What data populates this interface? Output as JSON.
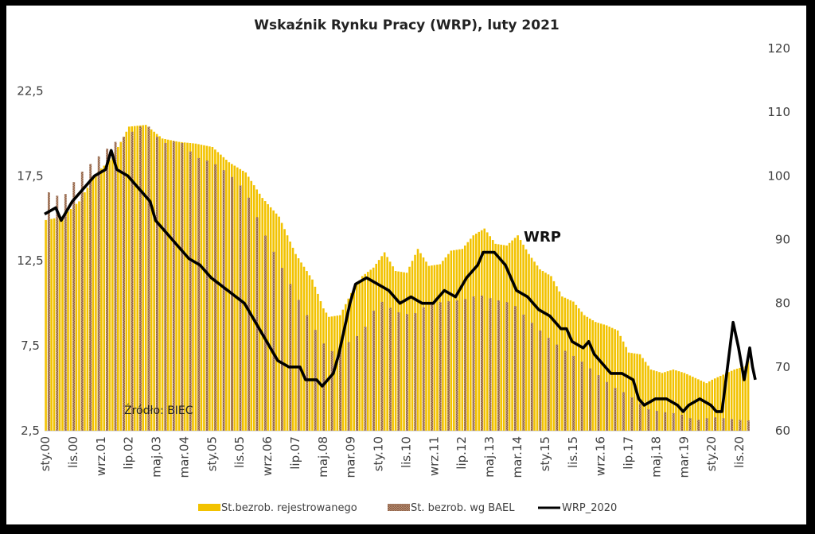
{
  "chart_data": {
    "type": "bar+line",
    "title": "Wskaźnik Rynku Pracy (WRP), luty 2021",
    "left_axis": {
      "ylim": [
        2.5,
        25
      ],
      "ticks": [
        "2,5",
        "7,5",
        "12,5",
        "17,5",
        "22,5"
      ],
      "tick_values": [
        2.5,
        7.5,
        12.5,
        17.5,
        22.5
      ]
    },
    "right_axis": {
      "ylim": [
        60,
        120
      ],
      "ticks": [
        "60",
        "70",
        "80",
        "90",
        "100",
        "110",
        "120"
      ],
      "tick_values": [
        60,
        70,
        80,
        90,
        100,
        110,
        120
      ]
    },
    "x_tick_labels": [
      "sty.00",
      "lis.00",
      "wrz.01",
      "lip.02",
      "maj.03",
      "mar.04",
      "sty.05",
      "lis.05",
      "wrz.06",
      "lip.07",
      "maj.08",
      "mar.09",
      "sty.10",
      "lis.10",
      "wrz.11",
      "lip.12",
      "maj.13",
      "mar.14",
      "sty.15",
      "lis.15",
      "wrz.16",
      "lip.17",
      "maj.18",
      "mar.19",
      "sty.20",
      "lis.20"
    ],
    "x_tick_month_index": [
      0,
      10,
      20,
      30,
      40,
      50,
      60,
      70,
      80,
      90,
      100,
      110,
      120,
      130,
      140,
      150,
      160,
      170,
      180,
      190,
      200,
      210,
      220,
      230,
      240,
      250
    ],
    "n_months": 254,
    "series": [
      {
        "name": "St.bezrob. rejestrowanego",
        "axis": "left",
        "kind": "bar",
        "color": "#f2c200",
        "anchors": [
          [
            0,
            14.9
          ],
          [
            6,
            15.1
          ],
          [
            12,
            16.0
          ],
          [
            18,
            17.6
          ],
          [
            24,
            18.6
          ],
          [
            30,
            20.4
          ],
          [
            36,
            20.5
          ],
          [
            42,
            19.7
          ],
          [
            48,
            19.5
          ],
          [
            54,
            19.4
          ],
          [
            60,
            19.2
          ],
          [
            66,
            18.3
          ],
          [
            72,
            17.7
          ],
          [
            78,
            16.2
          ],
          [
            84,
            15.1
          ],
          [
            90,
            12.9
          ],
          [
            96,
            11.4
          ],
          [
            100,
            9.7
          ],
          [
            102,
            9.2
          ],
          [
            106,
            9.3
          ],
          [
            110,
            10.6
          ],
          [
            114,
            11.6
          ],
          [
            118,
            12.1
          ],
          [
            122,
            13.0
          ],
          [
            126,
            11.9
          ],
          [
            130,
            11.8
          ],
          [
            134,
            13.2
          ],
          [
            138,
            12.2
          ],
          [
            142,
            12.3
          ],
          [
            146,
            13.1
          ],
          [
            150,
            13.2
          ],
          [
            154,
            14.0
          ],
          [
            158,
            14.4
          ],
          [
            162,
            13.5
          ],
          [
            166,
            13.4
          ],
          [
            170,
            14.0
          ],
          [
            174,
            12.9
          ],
          [
            178,
            12.0
          ],
          [
            182,
            11.6
          ],
          [
            186,
            10.4
          ],
          [
            190,
            10.1
          ],
          [
            194,
            9.3
          ],
          [
            198,
            8.9
          ],
          [
            202,
            8.7
          ],
          [
            206,
            8.4
          ],
          [
            210,
            7.1
          ],
          [
            214,
            7.0
          ],
          [
            218,
            6.1
          ],
          [
            222,
            5.9
          ],
          [
            226,
            6.1
          ],
          [
            230,
            5.9
          ],
          [
            234,
            5.6
          ],
          [
            238,
            5.3
          ],
          [
            240,
            5.5
          ],
          [
            244,
            5.8
          ],
          [
            248,
            6.1
          ],
          [
            252,
            6.3
          ],
          [
            253,
            6.6
          ]
        ]
      },
      {
        "name": "St. bezrob. wg BAEL",
        "axis": "left",
        "kind": "bar-quarterly",
        "color": "#a87c5f",
        "anchors": [
          [
            0,
            16.6
          ],
          [
            6,
            16.2
          ],
          [
            12,
            17.6
          ],
          [
            18,
            18.5
          ],
          [
            24,
            19.4
          ],
          [
            30,
            20.0
          ],
          [
            36,
            20.6
          ],
          [
            42,
            19.4
          ],
          [
            48,
            19.6
          ],
          [
            54,
            18.6
          ],
          [
            60,
            18.3
          ],
          [
            66,
            17.6
          ],
          [
            72,
            16.6
          ],
          [
            78,
            14.3
          ],
          [
            84,
            12.4
          ],
          [
            90,
            10.5
          ],
          [
            96,
            8.7
          ],
          [
            102,
            7.1
          ],
          [
            108,
            7.6
          ],
          [
            114,
            8.3
          ],
          [
            120,
            10.2
          ],
          [
            126,
            9.5
          ],
          [
            132,
            9.3
          ],
          [
            138,
            10.0
          ],
          [
            144,
            10.1
          ],
          [
            150,
            10.2
          ],
          [
            156,
            10.5
          ],
          [
            162,
            10.2
          ],
          [
            168,
            10.0
          ],
          [
            174,
            9.0
          ],
          [
            180,
            8.1
          ],
          [
            186,
            7.3
          ],
          [
            192,
            6.7
          ],
          [
            198,
            5.9
          ],
          [
            204,
            5.1
          ],
          [
            210,
            4.6
          ],
          [
            216,
            3.8
          ],
          [
            222,
            3.6
          ],
          [
            228,
            3.5
          ],
          [
            234,
            3.1
          ],
          [
            240,
            3.3
          ],
          [
            246,
            3.2
          ],
          [
            252,
            3.1
          ]
        ]
      },
      {
        "name": "WRP_2020",
        "axis": "right",
        "kind": "line",
        "color": "#000000",
        "anchors": [
          [
            0,
            94
          ],
          [
            4,
            95
          ],
          [
            6,
            93
          ],
          [
            10,
            96
          ],
          [
            14,
            98
          ],
          [
            18,
            100
          ],
          [
            22,
            101
          ],
          [
            24,
            104
          ],
          [
            26,
            101
          ],
          [
            30,
            100
          ],
          [
            34,
            98
          ],
          [
            38,
            96
          ],
          [
            40,
            93
          ],
          [
            44,
            91
          ],
          [
            48,
            89
          ],
          [
            52,
            87
          ],
          [
            56,
            86
          ],
          [
            60,
            84
          ],
          [
            66,
            82
          ],
          [
            72,
            80
          ],
          [
            76,
            77
          ],
          [
            80,
            74
          ],
          [
            84,
            71
          ],
          [
            88,
            70
          ],
          [
            92,
            70
          ],
          [
            94,
            68
          ],
          [
            98,
            68
          ],
          [
            100,
            67
          ],
          [
            104,
            69
          ],
          [
            106,
            72
          ],
          [
            108,
            76
          ],
          [
            110,
            80
          ],
          [
            112,
            83
          ],
          [
            116,
            84
          ],
          [
            120,
            83
          ],
          [
            124,
            82
          ],
          [
            128,
            80
          ],
          [
            132,
            81
          ],
          [
            136,
            80
          ],
          [
            140,
            80
          ],
          [
            144,
            82
          ],
          [
            148,
            81
          ],
          [
            152,
            84
          ],
          [
            156,
            86
          ],
          [
            158,
            88
          ],
          [
            162,
            88
          ],
          [
            166,
            86
          ],
          [
            168,
            84
          ],
          [
            170,
            82
          ],
          [
            174,
            81
          ],
          [
            178,
            79
          ],
          [
            182,
            78
          ],
          [
            186,
            76
          ],
          [
            188,
            76
          ],
          [
            190,
            74
          ],
          [
            194,
            73
          ],
          [
            196,
            74
          ],
          [
            198,
            72
          ],
          [
            200,
            71
          ],
          [
            204,
            69
          ],
          [
            208,
            69
          ],
          [
            212,
            68
          ],
          [
            214,
            65
          ],
          [
            216,
            64
          ],
          [
            220,
            65
          ],
          [
            224,
            65
          ],
          [
            228,
            64
          ],
          [
            230,
            63
          ],
          [
            232,
            64
          ],
          [
            236,
            65
          ],
          [
            240,
            64
          ],
          [
            242,
            63
          ],
          [
            244,
            63
          ],
          [
            246,
            70
          ],
          [
            248,
            77
          ],
          [
            250,
            73
          ],
          [
            252,
            68
          ],
          [
            254,
            73
          ],
          [
            255,
            70
          ],
          [
            256,
            68
          ]
        ]
      }
    ],
    "annotations": {
      "series_label": "WRP",
      "source": "Źródło: BIEC"
    },
    "legend": [
      "St.bezrob. rejestrowanego",
      "St. bezrob. wg BAEL",
      "WRP_2020"
    ],
    "legend_position": "bottom"
  }
}
